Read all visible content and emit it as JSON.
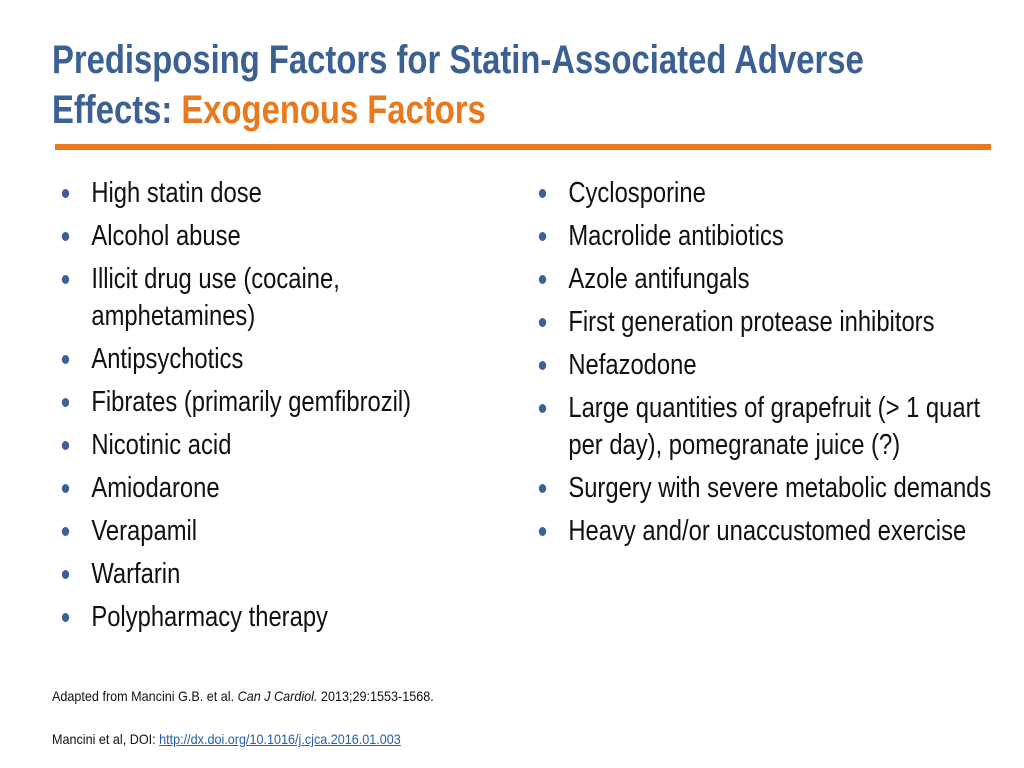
{
  "header": {
    "title_line1": "Predisposing Factors for Statin-Associated Adverse",
    "title_line2": "Effects: ",
    "title_highlight": "Exogenous Factors"
  },
  "left_list": [
    "High statin dose",
    "Alcohol abuse",
    "Illicit drug use (cocaine, amphetamines)",
    "Antipsychotics",
    "Fibrates (primarily gemfibrozil)",
    "Nicotinic acid",
    "Amiodarone",
    "Verapamil",
    "Warfarin",
    "Polypharmacy therapy"
  ],
  "right_list": [
    "Cyclosporine",
    "Macrolide antibiotics",
    "Azole antifungals",
    "First generation protease inhibitors",
    "Nefazodone",
    "Large quantities of grapefruit (> 1 quart per day), pomegranate juice (?)",
    "Surgery with severe metabolic demands",
    "Heavy and/or unaccustomed exercise"
  ],
  "references": {
    "ref1_prefix": "Adapted from Mancini G.B. et al. ",
    "ref1_journal": "Can J Cardiol.",
    "ref1_suffix": " 2013;29:1553-1568.",
    "ref2_prefix": "Mancini et al, DOI: ",
    "ref2_link": "http://dx.doi.org/10.1016/j.cjca.2016.01.003"
  }
}
